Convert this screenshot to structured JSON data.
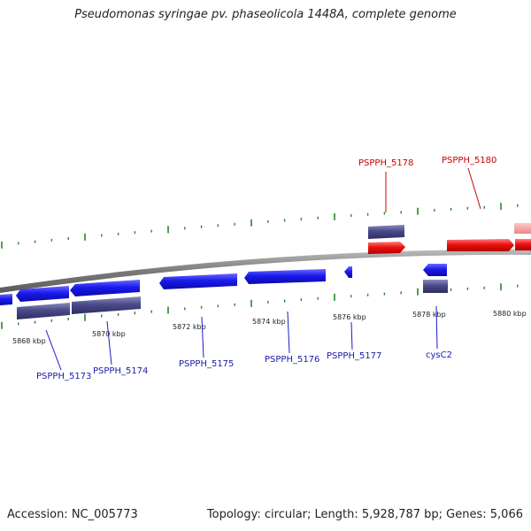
{
  "title": "Pseudomonas syringae pv. phaseolicola 1448A, complete genome",
  "footer": {
    "accession": "Accession: NC_005773",
    "topology": "Topology: circular; Length: 5,928,787 bp; Genes: 5,066"
  },
  "colors": {
    "reverse_gene": "#1a1aee",
    "forward_gene": "#ee1111",
    "cds_feature": "#4a4a88",
    "faded_gene": "#f0a0a0",
    "backbone": "#888888",
    "tick": "#228b22",
    "label_reverse": "#1a1aaa",
    "label_forward": "#cc0000"
  },
  "scale_labels": [
    "5868 kbp",
    "5870 kbp",
    "5872 kbp",
    "5874 kbp",
    "5876 kbp",
    "5878 kbp",
    "5880 kbp"
  ],
  "genes": [
    {
      "label": "PSPPH_5173",
      "strand": "reverse"
    },
    {
      "label": "PSPPH_5174",
      "strand": "reverse"
    },
    {
      "label": "PSPPH_5175",
      "strand": "reverse"
    },
    {
      "label": "PSPPH_5176",
      "strand": "reverse"
    },
    {
      "label": "PSPPH_5177",
      "strand": "reverse"
    },
    {
      "label": "cysC2",
      "strand": "reverse"
    },
    {
      "label": "PSPPH_5178",
      "strand": "forward"
    },
    {
      "label": "PSPPH_5180",
      "strand": "forward"
    }
  ]
}
